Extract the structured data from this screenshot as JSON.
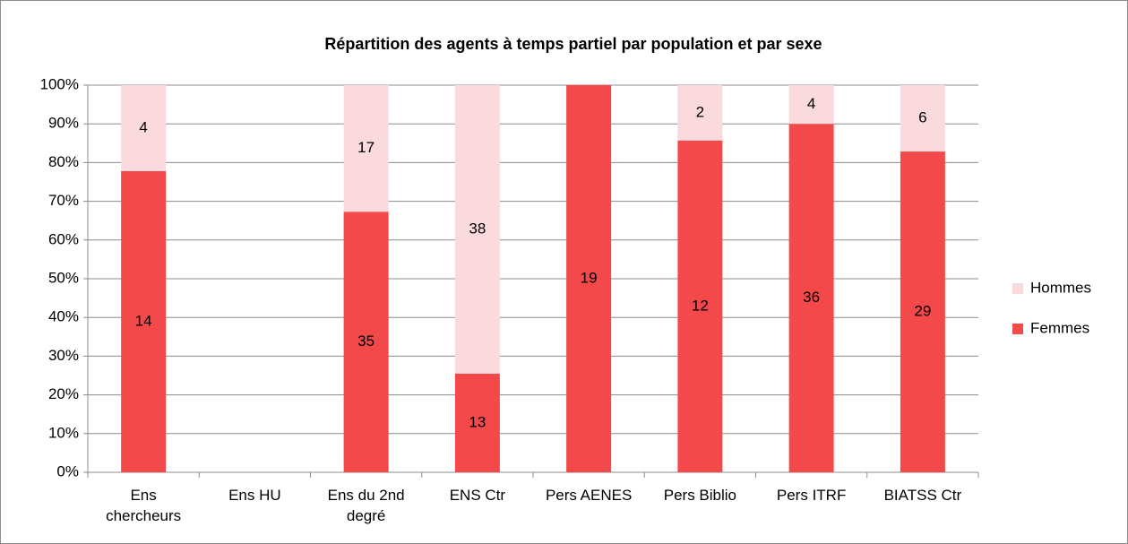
{
  "chart_data": {
    "type": "bar",
    "stacking": "percent",
    "title": "Répartition des agents à temps partiel par population et par sexe",
    "categories": [
      "Ens chercheurs",
      "Ens HU",
      "Ens du 2nd degré",
      "ENS Ctr",
      "Pers AENES",
      "Pers Biblio",
      "Pers ITRF",
      "BIATSS Ctr"
    ],
    "series": [
      {
        "name": "Femmes",
        "color": "#f4494b",
        "values": [
          14,
          null,
          35,
          13,
          19,
          12,
          36,
          29
        ]
      },
      {
        "name": "Hommes",
        "color": "#fadadd",
        "values": [
          4,
          null,
          17,
          38,
          null,
          2,
          4,
          6
        ]
      }
    ],
    "ylim": [
      0,
      100
    ],
    "yticks": [
      {
        "value": 0,
        "label": "0%"
      },
      {
        "value": 10,
        "label": "10%"
      },
      {
        "value": 20,
        "label": "20%"
      },
      {
        "value": 30,
        "label": "30%"
      },
      {
        "value": 40,
        "label": "40%"
      },
      {
        "value": 50,
        "label": "50%"
      },
      {
        "value": 60,
        "label": "60%"
      },
      {
        "value": 70,
        "label": "70%"
      },
      {
        "value": 80,
        "label": "80%"
      },
      {
        "value": 90,
        "label": "90%"
      },
      {
        "value": 100,
        "label": "100%"
      }
    ],
    "grid": true,
    "legend": "right"
  }
}
